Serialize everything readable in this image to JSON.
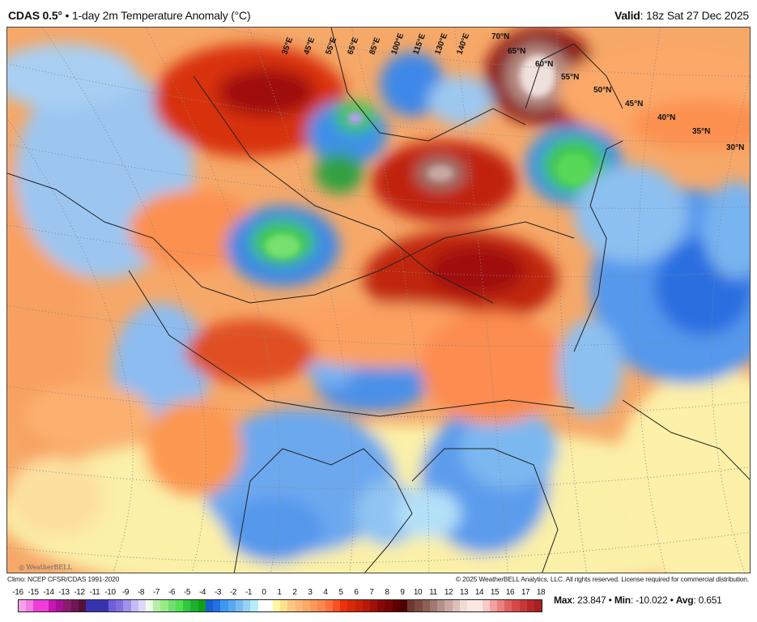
{
  "header": {
    "model": "CDAS 0.5°",
    "separator": "•",
    "product": "1-day 2m Temperature Anomaly (°C)",
    "valid_label": "Valid",
    "valid_value": ": 18z Sat 27 Dec 2025"
  },
  "map": {
    "longitude_labels": [
      "35°E",
      "45°E",
      "55°E",
      "65°E",
      "85°E",
      "100°E",
      "115°E",
      "130°E",
      "140°E"
    ],
    "latitude_labels": [
      "70°N",
      "65°N",
      "60°N",
      "55°N",
      "50°N",
      "45°N",
      "40°N",
      "35°N",
      "30°N"
    ],
    "logo_text": "WeatherBELL"
  },
  "footer": {
    "climo": "Climo: NCEP CFSR/CDAS 1991-2020",
    "copyright": "© 2025 WeatherBELL Analytics, LLC. All rights reserved. License required for commercial distribution."
  },
  "colorbar": {
    "ticks": [
      "-16",
      "-15",
      "-14",
      "-13",
      "-12",
      "-11",
      "-10",
      "-9",
      "-8",
      "-7",
      "-6",
      "-5",
      "-4",
      "-3",
      "-2",
      "-1",
      "0",
      "1",
      "2",
      "3",
      "4",
      "5",
      "6",
      "7",
      "8",
      "9",
      "10",
      "11",
      "12",
      "13",
      "14",
      "15",
      "16",
      "17",
      "18"
    ],
    "colors": [
      "#f7a0ec",
      "#f47ce4",
      "#f03cd8",
      "#f03cd8",
      "#c814b4",
      "#a81098",
      "#8a1c6c",
      "#6e1656",
      "#581038",
      "#3834b0",
      "#3834b0",
      "#3834b0",
      "#7060d8",
      "#8070e0",
      "#a090f0",
      "#c4bcf6",
      "#dcdaf8",
      "#eefce8",
      "#b4f0a8",
      "#98ec88",
      "#70e070",
      "#50e050",
      "#30c840",
      "#20b030",
      "#10a018",
      "#1860d0",
      "#2070e8",
      "#3c98f0",
      "#58a8f0",
      "#78bcf4",
      "#98d0f8",
      "#b4eefa",
      "#ffffff",
      "#ffffff",
      "#fff8a0",
      "#fde08c",
      "#fcc880",
      "#fdb878",
      "#fca868",
      "#fc9858",
      "#fc8850",
      "#fc7040",
      "#fc5020",
      "#ec3010",
      "#d82808",
      "#c82008",
      "#b81808",
      "#a01008",
      "#880808",
      "#780404",
      "#600000",
      "#500000",
      "#6a3a30",
      "#7e4a40",
      "#8e6058",
      "#a07870",
      "#b49088",
      "#c8a8a0",
      "#dcc0b8",
      "#eedcd4",
      "#fae8e0",
      "#fae8e0",
      "#fcc8c8",
      "#f4a0a0",
      "#ec8080",
      "#e06060",
      "#d84848",
      "#c83838",
      "#b82828",
      "#a82020"
    ]
  },
  "stats": {
    "max_label": "Max",
    "max_value": ": 23.847",
    "min_label": "Min",
    "min_value": ": -10.022",
    "avg_label": "Avg",
    "avg_value": ": 0.651",
    "sep": " • "
  }
}
